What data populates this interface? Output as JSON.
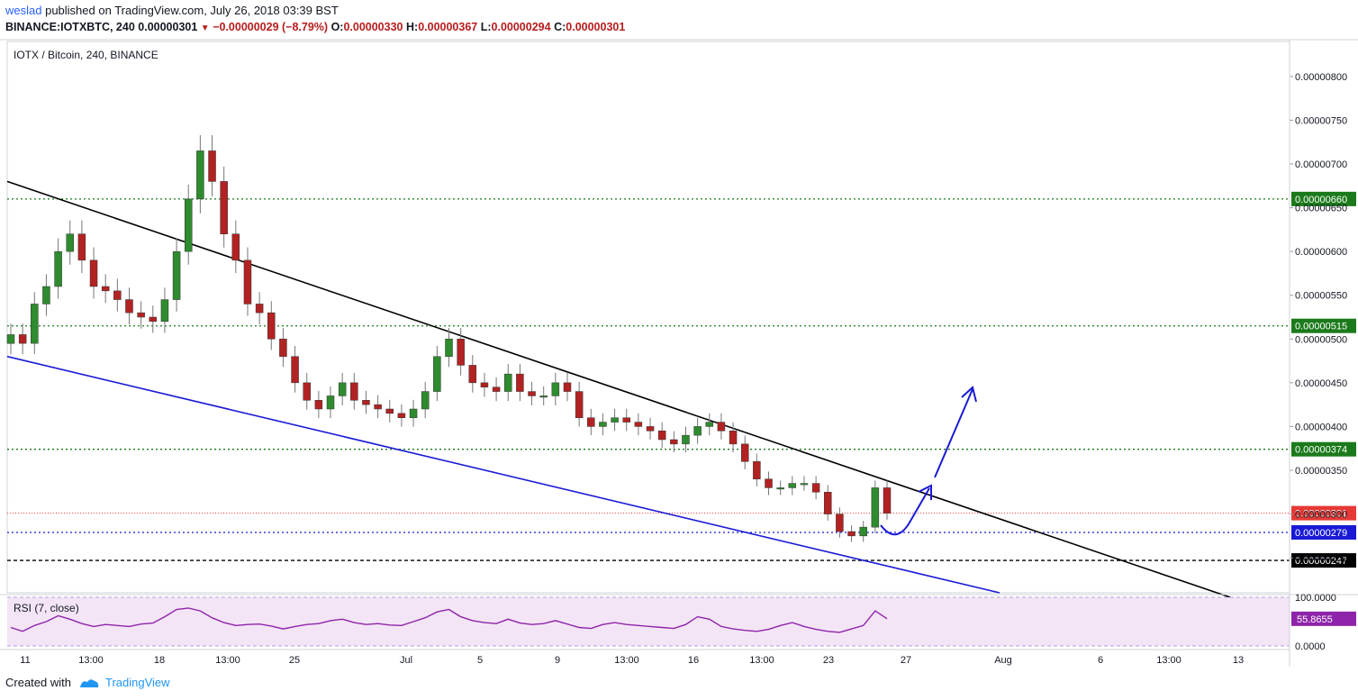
{
  "header": {
    "author": "weslad",
    "published_text": "published on TradingView.com, July 26, 2018 03:39 BST",
    "symbol_line": "BINANCE:IOTXBTC, 240",
    "last_price": "0.00000301",
    "change": "−0.00000029 (−8.79%)",
    "o_label": "O:",
    "o_value": "0.00000330",
    "h_label": "H:",
    "h_value": "0.00000367",
    "l_label": "L:",
    "l_value": "0.00000294",
    "c_label": "C:",
    "c_value": "0.00000301"
  },
  "chart_data": {
    "type": "candlestick",
    "title": "IOTX / Bitcoin, 240, BINANCE",
    "y_ticks": [
      "0.00000800",
      "0.00000750",
      "0.00000700",
      "0.00000650",
      "0.00000600",
      "0.00000550",
      "0.00000500",
      "0.00000450",
      "0.00000400",
      "0.00000350",
      "0.00000300",
      "0.00000250"
    ],
    "ylim": [
      2.1e-06,
      8.4e-06
    ],
    "x_ticks": [
      "11",
      "13:00",
      "18",
      "13:00",
      "25",
      "Jul",
      "5",
      "9",
      "13:00",
      "16",
      "13:00",
      "23",
      "27",
      "Aug",
      "6",
      "13:00",
      "13"
    ],
    "horizontal_levels": [
      {
        "value": 6.6e-06,
        "label": "0.00000660",
        "color": "#1b7a1b",
        "style": "dotted"
      },
      {
        "value": 5.15e-06,
        "label": "0.00000515",
        "color": "#1b7a1b",
        "style": "dotted"
      },
      {
        "value": 3.74e-06,
        "label": "0.00000374",
        "color": "#1b7a1b",
        "style": "dotted"
      },
      {
        "value": 2.79e-06,
        "label": "0.00000279",
        "color": "#1a1ad6",
        "style": "dotted"
      },
      {
        "value": 2.47e-06,
        "label": "0.00000247",
        "color": "#000000",
        "style": "dashed"
      }
    ],
    "last_price_label": "0.00000301",
    "trendlines": [
      {
        "name": "upper",
        "color": "#000000",
        "from": [
          6.8e-06
        ],
        "to": [
          2e-06
        ]
      },
      {
        "name": "lower",
        "color": "#1a1ad6",
        "from": [
          4.8e-06
        ],
        "to": [
          2.1e-06
        ]
      }
    ],
    "close_series": [
      5.05e-06,
      4.95e-06,
      5.4e-06,
      5.6e-06,
      6e-06,
      6.2e-06,
      5.9e-06,
      5.6e-06,
      5.55e-06,
      5.45e-06,
      5.3e-06,
      5.25e-06,
      5.2e-06,
      5.45e-06,
      6e-06,
      6.6e-06,
      7.15e-06,
      6.8e-06,
      6.2e-06,
      5.9e-06,
      5.4e-06,
      5.3e-06,
      5e-06,
      4.8e-06,
      4.5e-06,
      4.3e-06,
      4.2e-06,
      4.35e-06,
      4.5e-06,
      4.3e-06,
      4.25e-06,
      4.2e-06,
      4.15e-06,
      4.1e-06,
      4.2e-06,
      4.4e-06,
      4.8e-06,
      5e-06,
      4.7e-06,
      4.5e-06,
      4.45e-06,
      4.4e-06,
      4.6e-06,
      4.4e-06,
      4.35e-06,
      4.35e-06,
      4.5e-06,
      4.4e-06,
      4.1e-06,
      4e-06,
      4.05e-06,
      4.1e-06,
      4.05e-06,
      4e-06,
      3.95e-06,
      3.85e-06,
      3.8e-06,
      3.9e-06,
      4e-06,
      4.05e-06,
      3.95e-06,
      3.8e-06,
      3.6e-06,
      3.4e-06,
      3.3e-06,
      3.3e-06,
      3.35e-06,
      3.35e-06,
      3.25e-06,
      3e-06,
      2.8e-06,
      2.75e-06,
      2.85e-06,
      3.3e-06,
      3.01e-06
    ],
    "rsi": {
      "label": "RSI (7, close)",
      "value_label": "55.8655",
      "y_ticks": [
        "100.0000",
        "0.0000"
      ],
      "values": [
        38,
        30,
        42,
        50,
        62,
        55,
        46,
        40,
        44,
        42,
        40,
        45,
        47,
        60,
        75,
        78,
        72,
        58,
        48,
        42,
        44,
        45,
        41,
        35,
        40,
        44,
        46,
        52,
        55,
        48,
        44,
        46,
        43,
        42,
        50,
        58,
        70,
        75,
        60,
        52,
        48,
        46,
        55,
        47,
        44,
        46,
        52,
        45,
        38,
        36,
        44,
        48,
        44,
        42,
        40,
        38,
        36,
        44,
        60,
        55,
        40,
        35,
        32,
        30,
        34,
        42,
        48,
        40,
        34,
        30,
        28,
        35,
        42,
        72,
        55.8655
      ]
    }
  },
  "annotations": {
    "projection_color": "#1a1ad6"
  },
  "footer": {
    "created_with": "Created with",
    "brand": "TradingView"
  }
}
